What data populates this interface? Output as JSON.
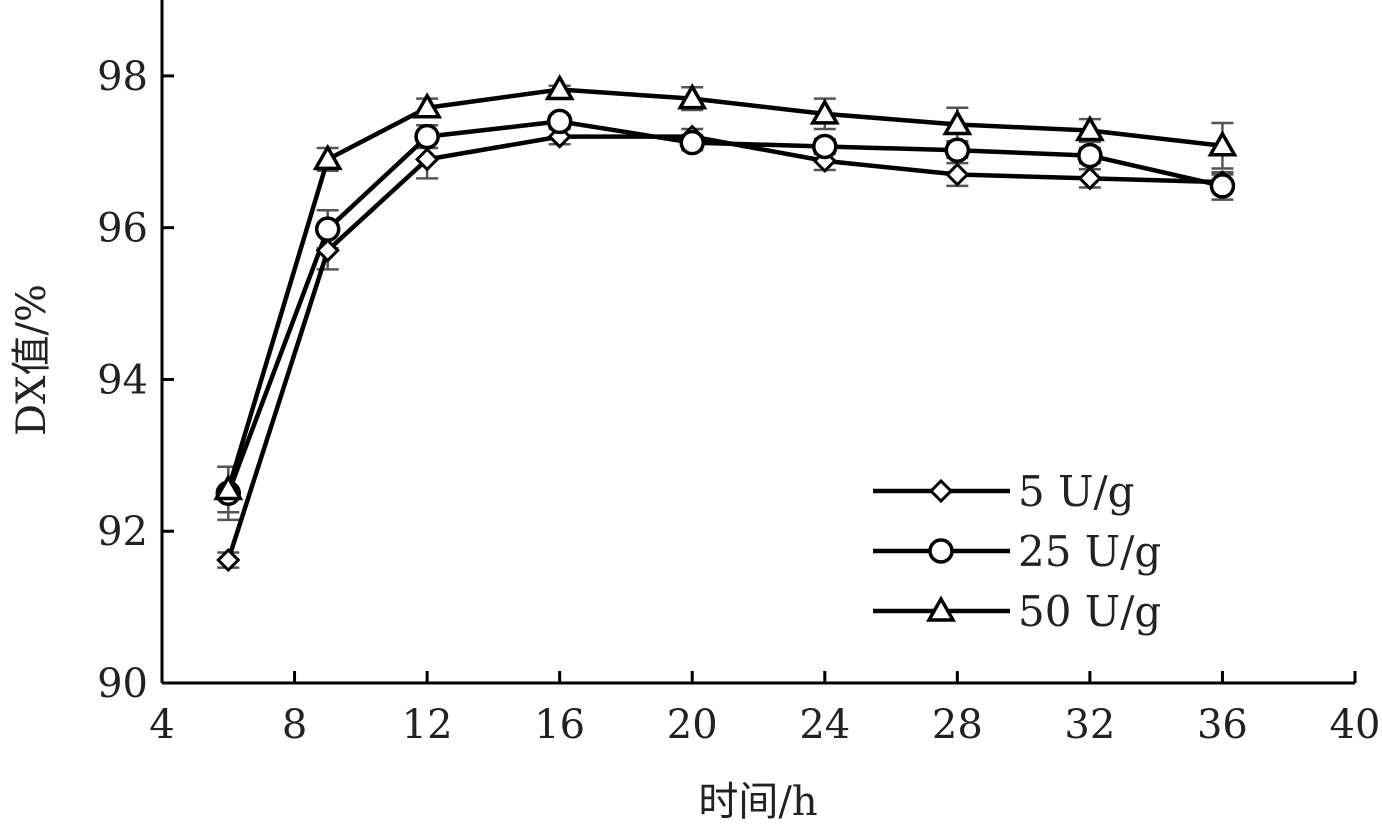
{
  "chart_data": {
    "type": "line",
    "title": "",
    "xlabel": "时间/h",
    "ylabel": "DX值/%",
    "xlim": [
      4,
      40
    ],
    "ylim": [
      90,
      99
    ],
    "xticks": [
      4,
      8,
      12,
      16,
      20,
      24,
      28,
      32,
      36,
      40
    ],
    "yticks": [
      90,
      92,
      94,
      96,
      98
    ],
    "x": [
      6,
      9,
      12,
      16,
      20,
      24,
      28,
      32,
      36
    ],
    "grid": false,
    "legend_position": "lower-right",
    "series": [
      {
        "name": "5 U/g",
        "marker": "diamond",
        "values": [
          91.62,
          95.7,
          96.9,
          97.2,
          97.2,
          96.88,
          96.7,
          96.65,
          96.6
        ],
        "errors": [
          0.1,
          0.25,
          0.25,
          0.1,
          0.1,
          0.12,
          0.15,
          0.12,
          0.1
        ]
      },
      {
        "name": "25 U/g",
        "marker": "circle",
        "values": [
          92.5,
          95.98,
          97.2,
          97.4,
          97.12,
          97.07,
          97.02,
          96.95,
          96.55
        ],
        "errors": [
          0.35,
          0.25,
          0.15,
          0.08,
          0.1,
          0.1,
          0.1,
          0.1,
          0.18
        ]
      },
      {
        "name": "50 U/g",
        "marker": "triangle",
        "values": [
          92.55,
          96.9,
          97.58,
          97.82,
          97.7,
          97.5,
          97.36,
          97.28,
          97.08
        ],
        "errors": [
          0.3,
          0.15,
          0.12,
          0.05,
          0.15,
          0.2,
          0.22,
          0.15,
          0.3
        ]
      }
    ]
  }
}
